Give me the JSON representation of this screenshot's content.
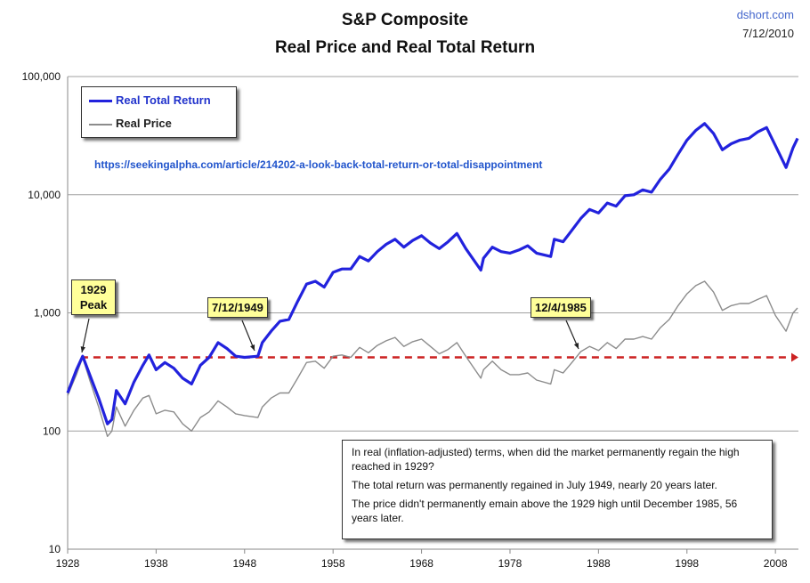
{
  "header": {
    "title_line1": "S&P Composite",
    "title_line2": "Real Price and Real Total Return",
    "source": "dshort.com",
    "date": "7/12/2010"
  },
  "legend": {
    "items": [
      {
        "label": "Real Total Return",
        "color": "#2222dd"
      },
      {
        "label": "Real Price",
        "color": "#8c8c8c"
      }
    ]
  },
  "url_text": "https://seekingalpha.com/article/214202-a-look-back-total-return-or-total-disappointment",
  "callouts": {
    "peak_1929": [
      "1929",
      "Peak"
    ],
    "date_1949": "7/12/1949",
    "date_1985": "12/4/1985"
  },
  "notes": {
    "para1": "In real (inflation-adjusted) terms, when did the market permanently regain the high reached in 1929?",
    "para2": "The total return was permanently regained in July 1949, nearly 20 years later.",
    "para3": "The price didn't permanently emain above the 1929 high until December 1985, 56 years later."
  },
  "chart_data": {
    "type": "line",
    "yscale": "log",
    "ylim": [
      10,
      100000
    ],
    "xlim": [
      1928,
      2010.6
    ],
    "y_ticks": [
      "10",
      "100",
      "1,000",
      "10,000",
      "100,000"
    ],
    "y_tick_values": [
      10,
      100,
      1000,
      10000,
      100000
    ],
    "x_ticks": [
      "1928",
      "1938",
      "1948",
      "1958",
      "1968",
      "1978",
      "1988",
      "1998",
      "2008"
    ],
    "x_tick_values": [
      1928,
      1938,
      1948,
      1958,
      1968,
      1978,
      1988,
      1998,
      2008
    ],
    "grid": "horizontal",
    "reference_line": {
      "value": 420,
      "color": "#cc2222",
      "style": "dashed"
    },
    "series": [
      {
        "name": "Real Total Return",
        "color": "#2222dd",
        "x": [
          1928,
          1929,
          1929.7,
          1930.5,
          1931.5,
          1932.5,
          1933,
          1933.5,
          1934.5,
          1935.5,
          1936.5,
          1937.2,
          1938,
          1939,
          1940,
          1941,
          1942,
          1943,
          1944,
          1945,
          1946,
          1947,
          1948,
          1949.5,
          1950,
          1951,
          1952,
          1953,
          1954,
          1955,
          1956,
          1957,
          1958,
          1959,
          1960,
          1961,
          1962,
          1963,
          1964,
          1965,
          1966,
          1967,
          1968,
          1969,
          1970,
          1971,
          1972,
          1973,
          1974.7,
          1975,
          1976,
          1977,
          1978,
          1979,
          1980,
          1981,
          1982.6,
          1983,
          1984,
          1985,
          1986,
          1987,
          1988,
          1989,
          1990,
          1991,
          1992,
          1993,
          1994,
          1995,
          1996,
          1997,
          1998,
          1999,
          2000,
          2001,
          2002,
          2003,
          2004,
          2005,
          2006,
          2007,
          2008,
          2009.2,
          2010,
          2010.5
        ],
        "y": [
          210,
          330,
          430,
          300,
          190,
          115,
          125,
          220,
          170,
          260,
          360,
          440,
          330,
          380,
          340,
          280,
          250,
          360,
          420,
          560,
          500,
          430,
          420,
          430,
          560,
          700,
          850,
          880,
          1250,
          1750,
          1850,
          1650,
          2200,
          2350,
          2350,
          3000,
          2750,
          3300,
          3800,
          4200,
          3600,
          4100,
          4500,
          3900,
          3500,
          4000,
          4700,
          3500,
          2300,
          2900,
          3600,
          3300,
          3200,
          3400,
          3700,
          3200,
          3000,
          4200,
          4000,
          5000,
          6300,
          7500,
          7000,
          8500,
          8000,
          9800,
          10000,
          11000,
          10500,
          13500,
          16500,
          22000,
          29000,
          35000,
          40000,
          33000,
          24000,
          27000,
          29000,
          30000,
          34000,
          37000,
          26000,
          17000,
          25000,
          30000
        ]
      },
      {
        "name": "Real Price",
        "color": "#8c8c8c",
        "x": [
          1928,
          1929,
          1929.7,
          1930.5,
          1931.5,
          1932.5,
          1933,
          1933.5,
          1934.5,
          1935.5,
          1936.5,
          1937.2,
          1938,
          1939,
          1940,
          1941,
          1942,
          1943,
          1944,
          1945,
          1946,
          1947,
          1948,
          1949.5,
          1950,
          1951,
          1952,
          1953,
          1954,
          1955,
          1956,
          1957,
          1958,
          1959,
          1960,
          1961,
          1962,
          1963,
          1964,
          1965,
          1966,
          1967,
          1968,
          1969,
          1970,
          1971,
          1972,
          1973,
          1974.7,
          1975,
          1976,
          1977,
          1978,
          1979,
          1980,
          1981,
          1982.6,
          1983,
          1984,
          1985,
          1986,
          1987,
          1988,
          1989,
          1990,
          1991,
          1992,
          1993,
          1994,
          1995,
          1996,
          1997,
          1998,
          1999,
          2000,
          2001,
          2002,
          2003,
          2004,
          2005,
          2006,
          2007,
          2008,
          2009.2,
          2010,
          2010.5
        ],
        "y": [
          200,
          300,
          420,
          270,
          160,
          90,
          100,
          160,
          110,
          150,
          190,
          200,
          140,
          150,
          145,
          115,
          100,
          130,
          145,
          180,
          160,
          140,
          135,
          130,
          160,
          190,
          210,
          210,
          280,
          380,
          390,
          340,
          430,
          440,
          420,
          510,
          460,
          530,
          580,
          620,
          520,
          570,
          600,
          520,
          450,
          490,
          560,
          430,
          280,
          330,
          390,
          330,
          300,
          300,
          310,
          270,
          250,
          330,
          310,
          380,
          470,
          520,
          480,
          560,
          500,
          600,
          600,
          630,
          600,
          750,
          880,
          1150,
          1450,
          1700,
          1850,
          1500,
          1050,
          1150,
          1200,
          1200,
          1300,
          1400,
          950,
          700,
          1000,
          1100
        ]
      }
    ]
  }
}
